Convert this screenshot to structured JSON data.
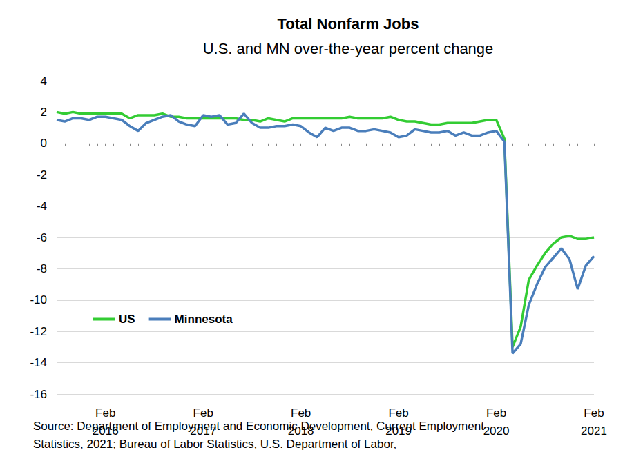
{
  "chart_data": {
    "type": "line",
    "title": "Total Nonfarm Jobs",
    "subtitle": "U.S. and MN over-the-year percent change",
    "source": "Source: Department of Employment and Economic Development, Current Employment Statistics, 2021; Bureau of Labor Statistics, U.S. Department of Labor,",
    "categories": [
      null,
      null,
      null,
      null,
      null,
      null,
      "Feb\n2016",
      null,
      null,
      null,
      null,
      null,
      null,
      null,
      null,
      null,
      null,
      null,
      "Feb\n2017",
      null,
      null,
      null,
      null,
      null,
      null,
      null,
      null,
      null,
      null,
      null,
      "Feb\n2018",
      null,
      null,
      null,
      null,
      null,
      null,
      null,
      null,
      null,
      null,
      null,
      "Feb\n2019",
      null,
      null,
      null,
      null,
      null,
      null,
      null,
      null,
      null,
      null,
      null,
      "Feb\n2020",
      null,
      null,
      null,
      null,
      null,
      null,
      null,
      null,
      null,
      null,
      null,
      "Feb\n2021"
    ],
    "series": [
      {
        "name": "US",
        "color": "#33cc33",
        "values": [
          2.0,
          1.9,
          2.0,
          1.9,
          1.9,
          1.9,
          1.9,
          1.9,
          1.9,
          1.6,
          1.8,
          1.8,
          1.8,
          1.9,
          1.7,
          1.7,
          1.6,
          1.6,
          1.6,
          1.6,
          1.6,
          1.6,
          1.6,
          1.5,
          1.5,
          1.4,
          1.6,
          1.5,
          1.4,
          1.6,
          1.6,
          1.6,
          1.6,
          1.6,
          1.6,
          1.6,
          1.7,
          1.6,
          1.6,
          1.6,
          1.6,
          1.7,
          1.5,
          1.4,
          1.4,
          1.3,
          1.2,
          1.2,
          1.3,
          1.3,
          1.3,
          1.3,
          1.4,
          1.5,
          1.5,
          0.3,
          -13.0,
          -11.7,
          -8.7,
          -7.8,
          -7.0,
          -6.4,
          -6.0,
          -5.9,
          -6.1,
          -6.1,
          -6.0
        ]
      },
      {
        "name": "Minnesota",
        "color": "#4a7ebb",
        "values": [
          1.5,
          1.4,
          1.6,
          1.6,
          1.5,
          1.7,
          1.7,
          1.6,
          1.5,
          1.1,
          0.8,
          1.3,
          1.5,
          1.7,
          1.8,
          1.4,
          1.2,
          1.1,
          1.8,
          1.7,
          1.8,
          1.2,
          1.3,
          1.9,
          1.3,
          1.0,
          1.0,
          1.1,
          1.1,
          1.2,
          1.1,
          0.7,
          0.4,
          1.0,
          0.8,
          1.0,
          1.0,
          0.8,
          0.8,
          0.9,
          0.8,
          0.7,
          0.4,
          0.5,
          0.9,
          0.8,
          0.7,
          0.7,
          0.8,
          0.5,
          0.7,
          0.5,
          0.5,
          0.7,
          0.8,
          0.1,
          -13.4,
          -12.8,
          -10.3,
          -9.0,
          -7.9,
          -7.3,
          -6.7,
          -7.4,
          -9.3,
          -7.8,
          -7.2
        ]
      }
    ],
    "ylim": [
      -16,
      4
    ],
    "yticks": [
      -16,
      -14,
      -12,
      -10,
      -8,
      -6,
      -4,
      -2,
      0,
      2,
      4
    ],
    "grid": true,
    "legend": "lower left"
  }
}
